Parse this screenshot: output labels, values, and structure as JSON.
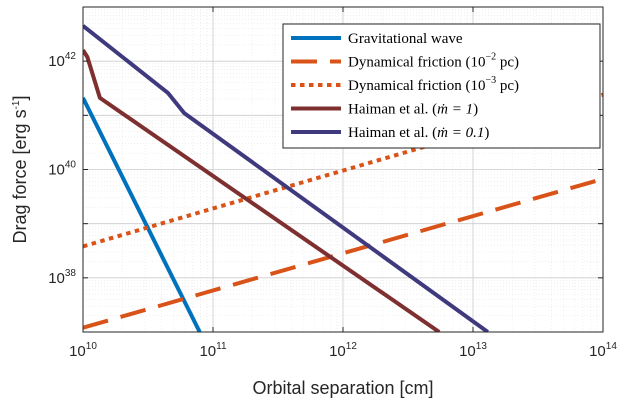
{
  "chart_data": {
    "type": "line",
    "xlabel": "Orbital separation [cm]",
    "ylabel": "Drag force [erg s",
    "ylabel_exp": "-1",
    "ylabel_close": "]",
    "x_scale": "log",
    "y_scale": "log",
    "xlim": [
      10000000000.0,
      100000000000000.0
    ],
    "ylim": [
      1e+37,
      1e+43
    ],
    "x_ticks": [
      {
        "value": 10000000000.0,
        "base": "10",
        "exp": "10"
      },
      {
        "value": 100000000000.0,
        "base": "10",
        "exp": "11"
      },
      {
        "value": 1000000000000.0,
        "base": "10",
        "exp": "12"
      },
      {
        "value": 10000000000000.0,
        "base": "10",
        "exp": "13"
      },
      {
        "value": 100000000000000.0,
        "base": "10",
        "exp": "14"
      }
    ],
    "y_ticks": [
      {
        "value": 1e+38,
        "base": "10",
        "exp": "38"
      },
      {
        "value": 1e+40,
        "base": "10",
        "exp": "40"
      },
      {
        "value": 1e+42,
        "base": "10",
        "exp": "42"
      }
    ],
    "grid": true,
    "legend_position": "top-right",
    "series": [
      {
        "name": "Gravitational wave",
        "legend": {
          "text": "Gravitational wave",
          "sup": "",
          "tail": ""
        },
        "color": "#0072BD",
        "style": "solid",
        "points": [
          [
            10000000000.0,
            2.1e+41
          ],
          [
            79000000000.0,
            1e+37
          ]
        ]
      },
      {
        "name": "Dynamical friction (10^-2 pc)",
        "legend": {
          "text": "Dynamical friction (10",
          "sup": "−2",
          "tail": " pc)"
        },
        "color": "#D95319",
        "style": "dashed",
        "points": [
          [
            10000000000.0,
            1.2e+37
          ],
          [
            100000000000000.0,
            6.7e+39
          ]
        ]
      },
      {
        "name": "Dynamical friction (10^-3 pc)",
        "legend": {
          "text": "Dynamical friction (10",
          "sup": "−3",
          "tail": " pc)"
        },
        "color": "#D95319",
        "style": "dotted",
        "points": [
          [
            10000000000.0,
            3.8e+38
          ],
          [
            100000000000000.0,
            2.4e+41
          ]
        ]
      },
      {
        "name": "Haiman et al. (ṁ = 1)",
        "legend": {
          "text": "Haiman et al. (",
          "math": "ṁ = 1",
          "tail": ")"
        },
        "color": "#7E2F2F",
        "style": "solid",
        "points": [
          [
            10000000000.0,
            1.6e+42
          ],
          [
            10800000000.0,
            1.2e+42
          ],
          [
            13500000000.0,
            2.1e+41
          ],
          [
            5500000000000.0,
            1e+37
          ]
        ]
      },
      {
        "name": "Haiman et al. (ṁ = 0.1)",
        "legend": {
          "text": "Haiman et al. (",
          "math": "ṁ = 0.1",
          "tail": ")"
        },
        "color": "#3F3A7E",
        "style": "solid",
        "points": [
          [
            10000000000.0,
            4.5e+42
          ],
          [
            45000000000.0,
            2.6e+41
          ],
          [
            60000000000.0,
            1.1e+41
          ],
          [
            13000000000000.0,
            1e+37
          ]
        ]
      }
    ]
  }
}
